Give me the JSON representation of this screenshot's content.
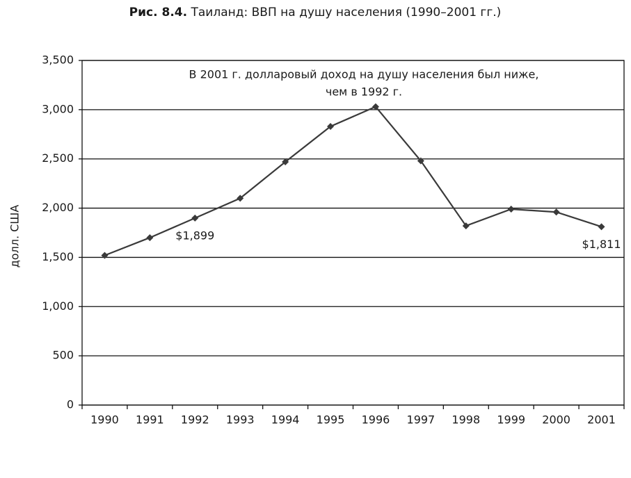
{
  "chart_data": {
    "type": "line",
    "figure_label": "Рис. 8.4.",
    "title": "Таиланд: ВВП на душу населения (1990–2001 гг.)",
    "annotation": [
      "В 2001 г. долларовый доход на душу населения был ниже,",
      "чем в 1992 г."
    ],
    "y_label": "долл. США",
    "categories": [
      "1990",
      "1991",
      "1992",
      "1993",
      "1994",
      "1995",
      "1996",
      "1997",
      "1998",
      "1999",
      "2000",
      "2001"
    ],
    "values": [
      1520,
      1700,
      1899,
      2100,
      2470,
      2830,
      3030,
      2480,
      1820,
      1990,
      1960,
      1811
    ],
    "value_labels": [
      null,
      null,
      "$1,899",
      null,
      null,
      null,
      null,
      null,
      null,
      null,
      null,
      "$1,811"
    ],
    "color": "#3a3a3a",
    "ylim": [
      0,
      3500
    ],
    "yticks": [
      0,
      500,
      {
        "value": 1000,
        "label": "1,000"
      },
      {
        "value": 1500,
        "label": "1,500"
      },
      {
        "value": 2000,
        "label": "2,000"
      },
      {
        "value": 2500,
        "label": "2,500"
      },
      {
        "value": 3000,
        "label": "3,000"
      },
      {
        "value": 3500,
        "label": "3,500"
      }
    ],
    "grid": true
  }
}
